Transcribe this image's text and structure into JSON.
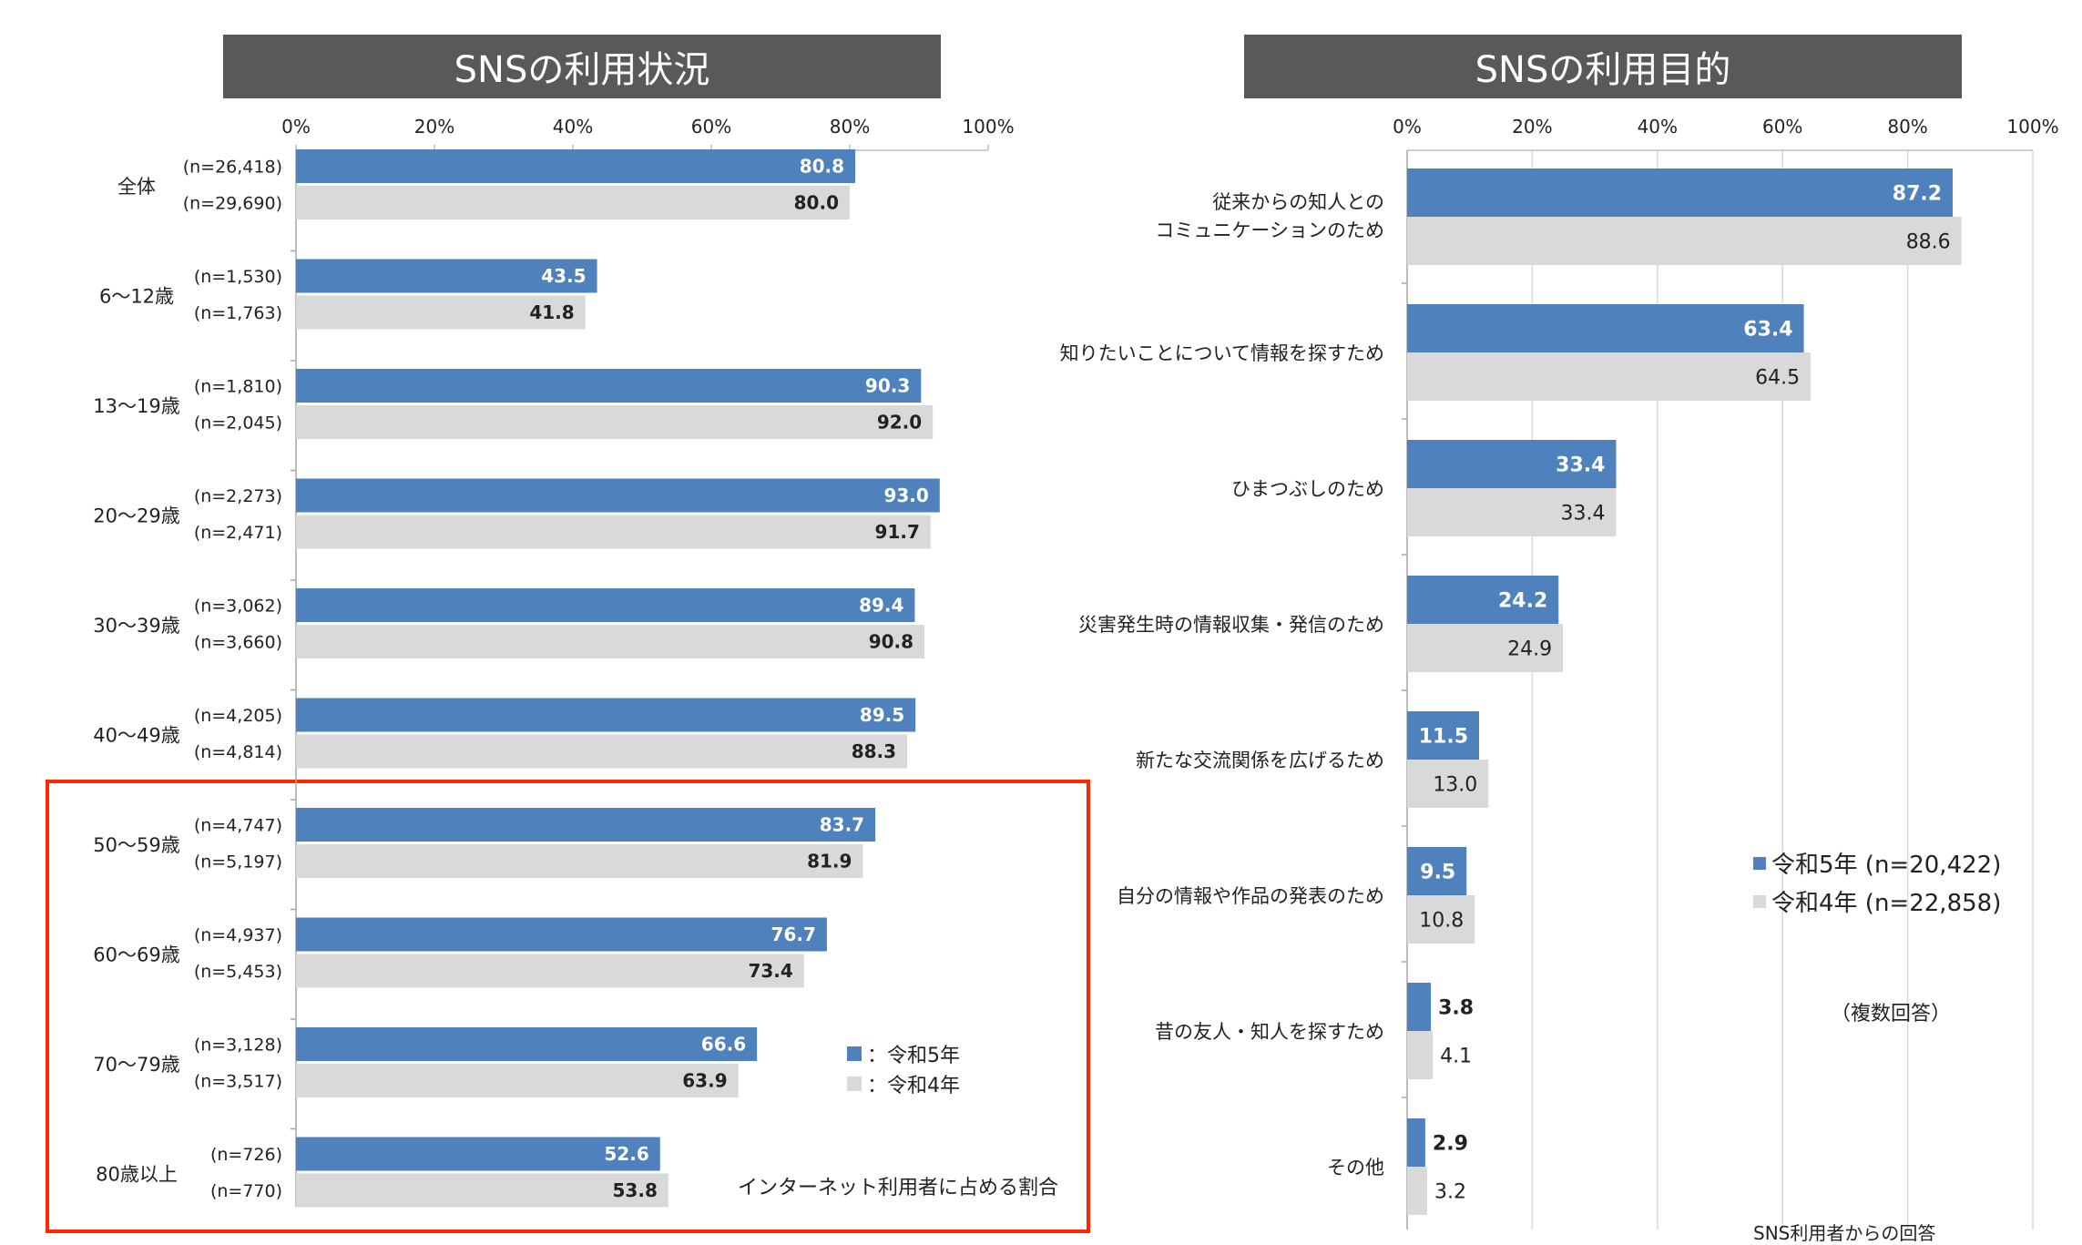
{
  "colors": {
    "current": "#4f81bd",
    "previous": "#d9d9d9",
    "highlight": "#ff2600",
    "title_bg": "#595959"
  },
  "left_title": "SNSの利用状況",
  "right_title": "SNSの利用目的",
  "left_legend": {
    "current": "：令和5年",
    "previous": "：令和4年"
  },
  "left_note": "インターネット利用者に占める割合",
  "right_legend": {
    "current": "令和5年 (n=20,422)",
    "previous": "令和4年 (n=22,858)"
  },
  "right_note_multi": "（複数回答）",
  "right_note_base": "SNS利用者からの回答",
  "chart_data": [
    {
      "type": "bar",
      "orientation": "horizontal",
      "title": "SNSの利用状況",
      "xlim": [
        0,
        100
      ],
      "ticks": [
        "0%",
        "20%",
        "40%",
        "60%",
        "80%",
        "100%"
      ],
      "categories": [
        "全体",
        "6～12歳",
        "13～19歳",
        "20～29歳",
        "30～39歳",
        "40～49歳",
        "50～59歳",
        "60～69歳",
        "70～79歳",
        "80歳以上"
      ],
      "series": [
        {
          "name": "令和5年",
          "values": [
            80.8,
            43.5,
            90.3,
            93.0,
            89.4,
            89.5,
            83.7,
            76.7,
            66.6,
            52.6
          ],
          "labels": [
            "80.8",
            "43.5",
            "90.3",
            "93.0",
            "89.4",
            "89.5",
            "83.7",
            "76.7",
            "66.6",
            "52.6"
          ],
          "n": [
            "(n=26,418)",
            "(n=1,530)",
            "(n=1,810)",
            "(n=2,273)",
            "(n=3,062)",
            "(n=4,205)",
            "(n=4,747)",
            "(n=4,937)",
            "(n=3,128)",
            "(n=726)"
          ]
        },
        {
          "name": "令和4年",
          "values": [
            80.0,
            41.8,
            92.0,
            91.7,
            90.8,
            88.3,
            81.9,
            73.4,
            63.9,
            53.8
          ],
          "labels": [
            "80.0",
            "41.8",
            "92.0",
            "91.7",
            "90.8",
            "88.3",
            "81.9",
            "73.4",
            "63.9",
            "53.8"
          ],
          "n": [
            "(n=29,690)",
            "(n=1,763)",
            "(n=2,045)",
            "(n=2,471)",
            "(n=3,660)",
            "(n=4,814)",
            "(n=5,197)",
            "(n=5,453)",
            "(n=3,517)",
            "(n=770)"
          ]
        }
      ]
    },
    {
      "type": "bar",
      "orientation": "horizontal",
      "title": "SNSの利用目的",
      "xlim": [
        0,
        100
      ],
      "ticks": [
        "0%",
        "20%",
        "40%",
        "60%",
        "80%",
        "100%"
      ],
      "categories": [
        [
          "従来からの知人との",
          "コミュニケーションのため"
        ],
        [
          "知りたいことについて情報を探すため"
        ],
        [
          "ひまつぶしのため"
        ],
        [
          "災害発生時の情報収集・発信のため"
        ],
        [
          "新たな交流関係を広げるため"
        ],
        [
          "自分の情報や作品の発表のため"
        ],
        [
          "昔の友人・知人を探すため"
        ],
        [
          "その他"
        ]
      ],
      "series": [
        {
          "name": "令和5年",
          "values": [
            87.2,
            63.4,
            33.4,
            24.2,
            11.5,
            9.5,
            3.8,
            2.9
          ],
          "labels": [
            "87.2",
            "63.4",
            "33.4",
            "24.2",
            "11.5",
            "9.5",
            "3.8",
            "2.9"
          ]
        },
        {
          "name": "令和4年",
          "values": [
            88.6,
            64.5,
            33.4,
            24.9,
            13.0,
            10.8,
            4.1,
            3.2
          ],
          "labels": [
            "88.6",
            "64.5",
            "33.4",
            "24.9",
            "13.0",
            "10.8",
            "4.1",
            "3.2"
          ]
        }
      ]
    }
  ]
}
